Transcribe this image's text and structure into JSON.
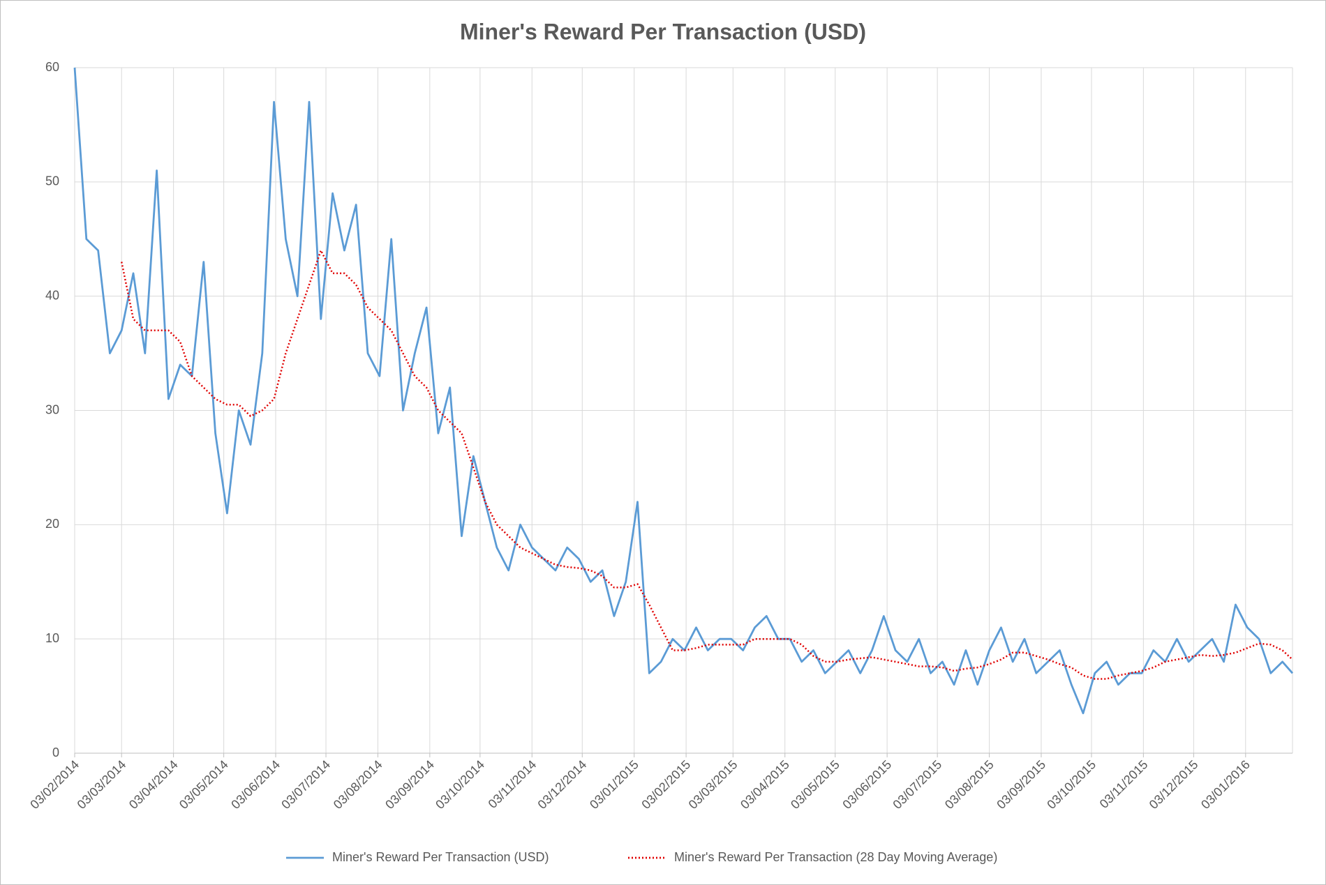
{
  "chart_data": {
    "type": "line",
    "title": "Miner's Reward Per Transaction (USD)",
    "x": [
      "2014-02-03",
      "2014-02-10",
      "2014-02-17",
      "2014-02-24",
      "2014-03-03",
      "2014-03-10",
      "2014-03-17",
      "2014-03-24",
      "2014-03-31",
      "2014-04-07",
      "2014-04-14",
      "2014-04-21",
      "2014-04-28",
      "2014-05-05",
      "2014-05-12",
      "2014-05-19",
      "2014-05-26",
      "2014-06-02",
      "2014-06-09",
      "2014-06-16",
      "2014-06-23",
      "2014-06-30",
      "2014-07-07",
      "2014-07-14",
      "2014-07-21",
      "2014-07-28",
      "2014-08-04",
      "2014-08-11",
      "2014-08-18",
      "2014-08-25",
      "2014-09-01",
      "2014-09-08",
      "2014-09-15",
      "2014-09-22",
      "2014-09-29",
      "2014-10-06",
      "2014-10-13",
      "2014-10-20",
      "2014-10-27",
      "2014-11-03",
      "2014-11-10",
      "2014-11-17",
      "2014-11-24",
      "2014-12-01",
      "2014-12-08",
      "2014-12-15",
      "2014-12-22",
      "2014-12-29",
      "2015-01-05",
      "2015-01-12",
      "2015-01-19",
      "2015-01-26",
      "2015-02-02",
      "2015-02-09",
      "2015-02-16",
      "2015-02-23",
      "2015-03-02",
      "2015-03-09",
      "2015-03-16",
      "2015-03-23",
      "2015-03-30",
      "2015-04-06",
      "2015-04-13",
      "2015-04-20",
      "2015-04-27",
      "2015-05-04",
      "2015-05-11",
      "2015-05-18",
      "2015-05-25",
      "2015-06-01",
      "2015-06-08",
      "2015-06-15",
      "2015-06-22",
      "2015-06-29",
      "2015-07-06",
      "2015-07-13",
      "2015-07-20",
      "2015-07-27",
      "2015-08-03",
      "2015-08-10",
      "2015-08-17",
      "2015-08-24",
      "2015-08-31",
      "2015-09-07",
      "2015-09-14",
      "2015-09-21",
      "2015-09-28",
      "2015-10-05",
      "2015-10-12",
      "2015-10-19",
      "2015-10-26",
      "2015-11-02",
      "2015-11-09",
      "2015-11-16",
      "2015-11-23",
      "2015-11-30",
      "2015-12-07",
      "2015-12-14",
      "2015-12-21",
      "2015-12-28",
      "2016-01-04",
      "2016-01-11",
      "2016-01-18",
      "2016-01-25",
      "2016-01-31"
    ],
    "series": [
      {
        "name": "Miner's Reward Per Transaction (USD)",
        "color": "#5b9bd5",
        "style": "solid",
        "values": [
          60,
          45,
          44,
          35,
          37,
          42,
          35,
          51,
          31,
          34,
          33,
          43,
          28,
          21,
          30,
          27,
          35,
          57,
          45,
          40,
          57,
          38,
          49,
          44,
          48,
          35,
          33,
          45,
          30,
          35,
          39,
          28,
          32,
          19,
          26,
          22,
          18,
          16,
          20,
          18,
          17,
          16,
          18,
          17,
          15,
          16,
          12,
          15,
          22,
          7,
          8,
          10,
          9,
          11,
          9,
          10,
          10,
          9,
          11,
          12,
          10,
          10,
          8,
          9,
          7,
          8,
          9,
          7,
          9,
          12,
          9,
          8,
          10,
          7,
          8,
          6,
          9,
          6,
          9,
          11,
          8,
          10,
          7,
          8,
          9,
          6,
          3.5,
          7,
          8,
          6,
          7,
          7,
          9,
          8,
          10,
          8,
          9,
          10,
          8,
          13,
          11,
          10,
          7,
          8,
          7
        ]
      },
      {
        "name": "Miner's Reward Per Transaction (28 Day Moving Average)",
        "color": "#e00000",
        "style": "dotted",
        "values": [
          null,
          null,
          null,
          null,
          43,
          38,
          37,
          37,
          37,
          36,
          33,
          32,
          31,
          30.5,
          30.5,
          29.5,
          30,
          31,
          35,
          38,
          41,
          44,
          42,
          42,
          41,
          39,
          38,
          37,
          35,
          33,
          32,
          30,
          29,
          28,
          25,
          22,
          20,
          19,
          18,
          17.5,
          17,
          16.5,
          16.3,
          16.2,
          16,
          15.5,
          14.5,
          14.5,
          14.8,
          13,
          11,
          9,
          9,
          9.2,
          9.5,
          9.5,
          9.5,
          9.5,
          10,
          10,
          10,
          10,
          9.5,
          8.5,
          8,
          8,
          8.2,
          8.3,
          8.4,
          8.2,
          8,
          7.8,
          7.6,
          7.6,
          7.5,
          7.2,
          7.4,
          7.5,
          7.8,
          8.2,
          8.8,
          8.8,
          8.5,
          8.2,
          7.8,
          7.5,
          6.8,
          6.5,
          6.5,
          6.8,
          7,
          7.2,
          7.5,
          8,
          8.2,
          8.4,
          8.6,
          8.5,
          8.6,
          8.8,
          9.2,
          9.6,
          9.5,
          9,
          8.2
        ]
      }
    ],
    "xlim": [
      "2014-02-03",
      "2016-01-31"
    ],
    "xticks": [
      {
        "value": "2014-02-03",
        "label": "03/02/2014"
      },
      {
        "value": "2014-03-03",
        "label": "03/03/2014"
      },
      {
        "value": "2014-04-03",
        "label": "03/04/2014"
      },
      {
        "value": "2014-05-03",
        "label": "03/05/2014"
      },
      {
        "value": "2014-06-03",
        "label": "03/06/2014"
      },
      {
        "value": "2014-07-03",
        "label": "03/07/2014"
      },
      {
        "value": "2014-08-03",
        "label": "03/08/2014"
      },
      {
        "value": "2014-09-03",
        "label": "03/09/2014"
      },
      {
        "value": "2014-10-03",
        "label": "03/10/2014"
      },
      {
        "value": "2014-11-03",
        "label": "03/11/2014"
      },
      {
        "value": "2014-12-03",
        "label": "03/12/2014"
      },
      {
        "value": "2015-01-03",
        "label": "03/01/2015"
      },
      {
        "value": "2015-02-03",
        "label": "03/02/2015"
      },
      {
        "value": "2015-03-03",
        "label": "03/03/2015"
      },
      {
        "value": "2015-04-03",
        "label": "03/04/2015"
      },
      {
        "value": "2015-05-03",
        "label": "03/05/2015"
      },
      {
        "value": "2015-06-03",
        "label": "03/06/2015"
      },
      {
        "value": "2015-07-03",
        "label": "03/07/2015"
      },
      {
        "value": "2015-08-03",
        "label": "03/08/2015"
      },
      {
        "value": "2015-09-03",
        "label": "03/09/2015"
      },
      {
        "value": "2015-10-03",
        "label": "03/10/2015"
      },
      {
        "value": "2015-11-03",
        "label": "03/11/2015"
      },
      {
        "value": "2015-12-03",
        "label": "03/12/2015"
      },
      {
        "value": "2016-01-03",
        "label": "03/01/2016"
      }
    ],
    "ylim": [
      0,
      60
    ],
    "yticks": [
      0,
      10,
      20,
      30,
      40,
      50,
      60
    ],
    "grid": true,
    "legend": "bottom"
  }
}
